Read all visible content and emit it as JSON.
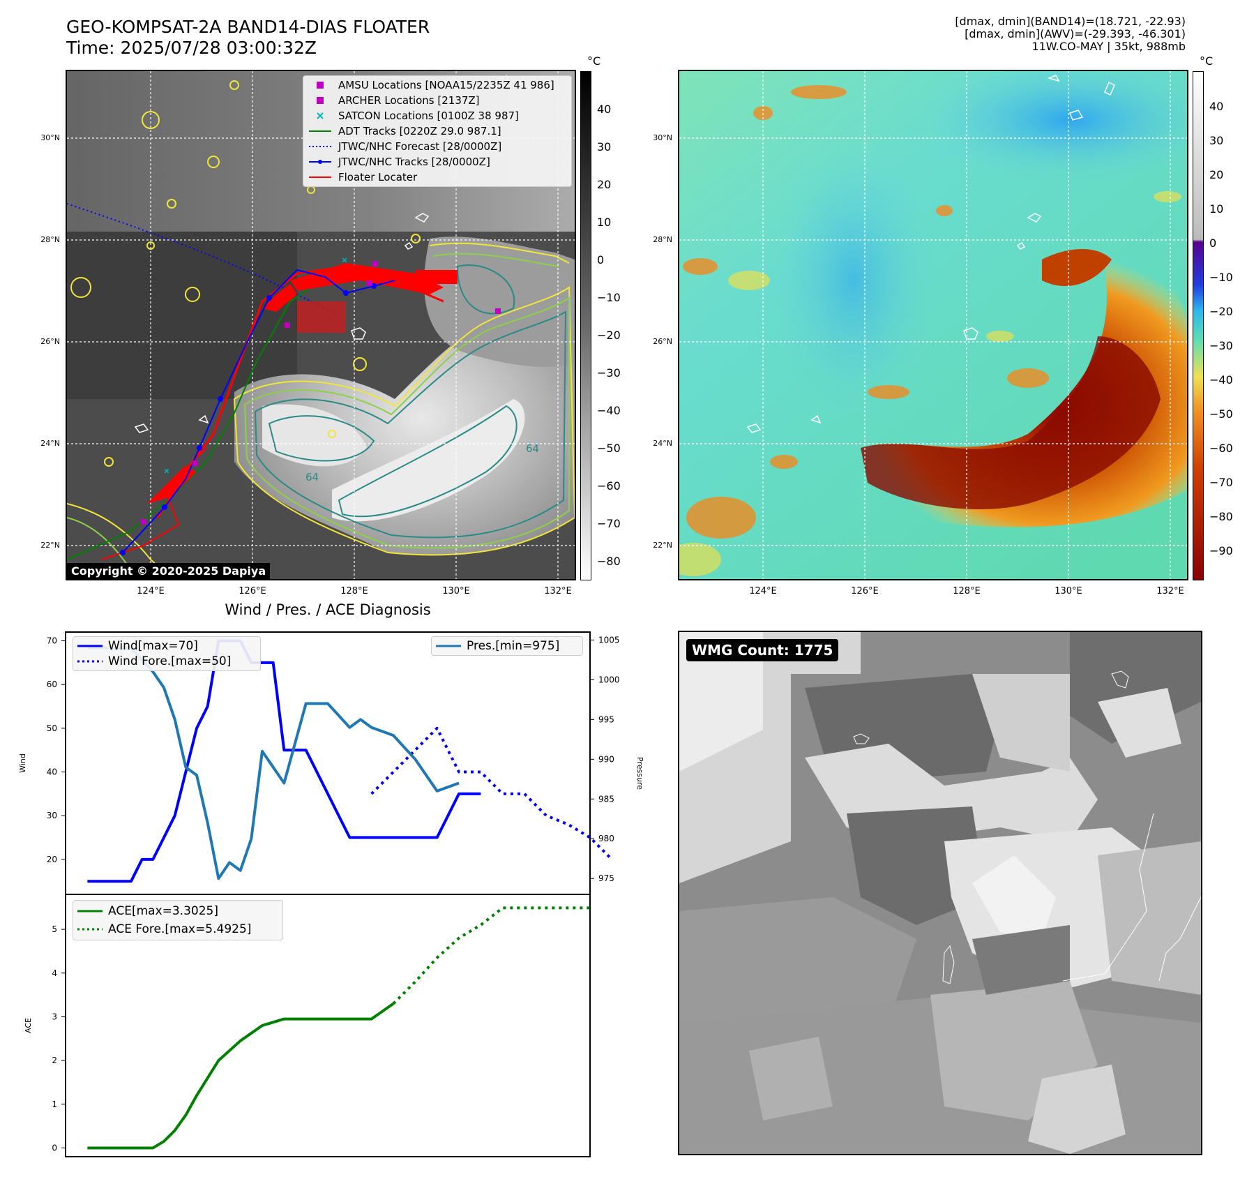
{
  "header": {
    "title_line1": "GEO-KOMPSAT-2A BAND14-DIAS FLOATER",
    "title_line2": "Time: 2025/07/28 03:00:32Z",
    "info_line1": "[dmax, dmin](BAND14)=(18.721, -22.93)",
    "info_line2": "[dmax, dmin](AWV)=(-29.393, -46.301)",
    "info_line3": "11W.CO-MAY | 35kt, 988mb"
  },
  "map_ticks": {
    "lon": [
      "124°E",
      "126°E",
      "128°E",
      "130°E",
      "132°E"
    ],
    "lat": [
      "30°N",
      "28°N",
      "26°N",
      "24°N",
      "22°N"
    ]
  },
  "ir_panel": {
    "copyright": "Copyright © 2020-2025 Dapiya",
    "contour_label": "64",
    "legend": [
      {
        "label": "AMSU Locations [NOAA15/2235Z 41 986]",
        "marker": "square",
        "color": "#c000c0"
      },
      {
        "label": "ARCHER Locations [2137Z]",
        "marker": "square",
        "color": "#c000c0"
      },
      {
        "label": "SATCON Locations [0100Z 38 987]",
        "marker": "x",
        "color": "#00b5b5"
      },
      {
        "label": "ADT Tracks [0220Z 29.0 987.1]",
        "marker": "line",
        "color": "#008000"
      },
      {
        "label": "JTWC/NHC Forecast [28/0000Z]",
        "marker": "dotted",
        "color": "#0000ff"
      },
      {
        "label": "JTWC/NHC Tracks [28/0000Z]",
        "marker": "line-dot",
        "color": "#0000ff"
      },
      {
        "label": "Floater Locater",
        "marker": "line",
        "color": "#ff0000"
      }
    ],
    "colorbar": {
      "unit": "°C",
      "ticks": [
        "40",
        "30",
        "20",
        "10",
        "0",
        "−10",
        "−20",
        "−30",
        "−40",
        "−50",
        "−60",
        "−70",
        "−80"
      ]
    }
  },
  "wv_panel": {
    "colorbar": {
      "unit": "°C",
      "ticks": [
        "40",
        "30",
        "20",
        "10",
        "0",
        "−10",
        "−20",
        "−30",
        "−40",
        "−50",
        "−60",
        "−70",
        "−80",
        "−90"
      ]
    }
  },
  "wmg_panel": {
    "count_label": "WMG Count: 1775"
  },
  "chart_data": [
    {
      "type": "line",
      "title": "Wind / Pres. / ACE Diagnosis",
      "ylabel": "Wind",
      "y2label": "Pressure",
      "ylim": [
        12,
        72
      ],
      "y2lim": [
        973,
        1006
      ],
      "yticks": [
        "20",
        "30",
        "40",
        "50",
        "60",
        "70"
      ],
      "y2ticks": [
        "975",
        "980",
        "985",
        "990",
        "995",
        "1000",
        "1005"
      ],
      "xlim": [
        -1,
        23
      ],
      "series": [
        {
          "name": "Wind[max=70]",
          "style": "solid",
          "color": "#0000ff",
          "x": [
            0,
            1,
            2,
            2.5,
            3,
            4,
            5,
            5.5,
            6,
            7,
            7.5,
            8,
            8.5,
            9,
            10,
            11,
            12,
            13,
            14,
            15,
            16,
            17,
            18
          ],
          "values": [
            15,
            15,
            15,
            20,
            20,
            30,
            50,
            55,
            70,
            70,
            65,
            65,
            65,
            45,
            45,
            35,
            25,
            25,
            25,
            25,
            25,
            35,
            35
          ]
        },
        {
          "name": "Wind Fore.[max=50]",
          "style": "dotted",
          "color": "#0000ff",
          "x": [
            13,
            14,
            15,
            16,
            16.5,
            17,
            18,
            19,
            20,
            21,
            22,
            23,
            24
          ],
          "values": [
            35,
            40,
            45,
            50,
            45,
            40,
            40,
            35,
            35,
            30,
            28,
            25,
            20
          ]
        },
        {
          "name": "Pres.[min=975]",
          "axis": "right",
          "style": "solid",
          "color": "#1f77b4",
          "x": [
            0,
            1,
            2,
            3,
            3.5,
            4,
            4.5,
            5,
            5.5,
            6,
            6.5,
            7,
            7.5,
            8,
            9,
            10,
            11,
            12,
            12.5,
            13,
            14,
            15,
            16,
            17
          ],
          "values": [
            1004,
            1004,
            1004,
            1001,
            999,
            995,
            989,
            988,
            982,
            975,
            977,
            976,
            980,
            991,
            987,
            997,
            997,
            994,
            995,
            994,
            993,
            990,
            986,
            987
          ]
        }
      ]
    },
    {
      "type": "line",
      "ylabel": "ACE",
      "ylim": [
        -0.2,
        5.8
      ],
      "yticks": [
        "0",
        "1",
        "2",
        "3",
        "4",
        "5"
      ],
      "xlim": [
        -1,
        23
      ],
      "series": [
        {
          "name": "ACE[max=3.3025]",
          "style": "solid",
          "color": "#008000",
          "x": [
            0,
            1,
            2,
            3,
            3.5,
            4,
            4.5,
            5,
            6,
            7,
            8,
            9,
            10,
            11,
            12,
            13,
            14
          ],
          "values": [
            0,
            0,
            0,
            0,
            0.15,
            0.4,
            0.75,
            1.2,
            2.0,
            2.45,
            2.8,
            2.95,
            2.95,
            2.95,
            2.95,
            2.95,
            3.3
          ]
        },
        {
          "name": "ACE Fore.[max=5.4925]",
          "style": "dotted",
          "color": "#008000",
          "x": [
            14,
            15,
            16,
            17,
            18,
            19,
            20,
            21,
            22,
            23
          ],
          "values": [
            3.3,
            3.8,
            4.35,
            4.8,
            5.1,
            5.49,
            5.49,
            5.49,
            5.49,
            5.49
          ]
        }
      ]
    }
  ]
}
